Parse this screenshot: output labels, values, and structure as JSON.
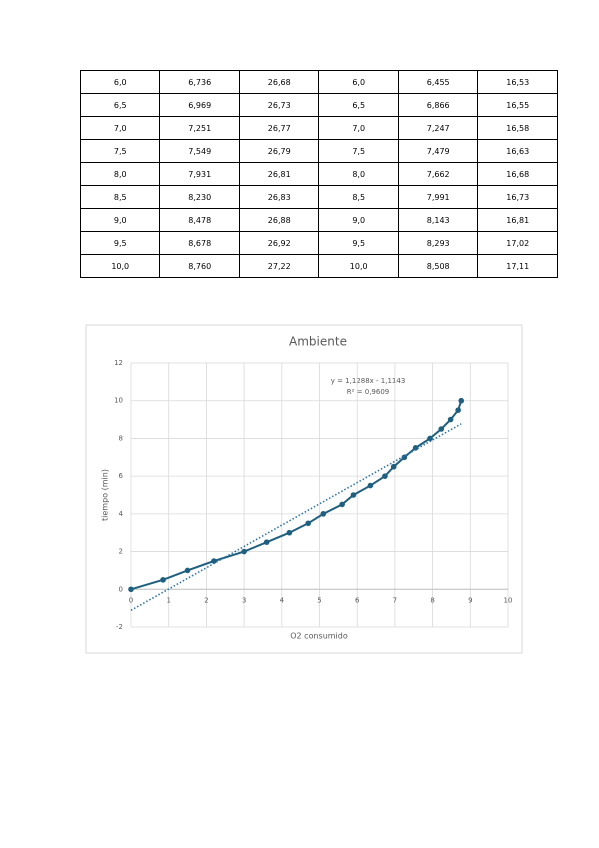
{
  "table": {
    "rows": [
      [
        "6,0",
        "6,736",
        "26,68",
        "6,0",
        "6,455",
        "16,53"
      ],
      [
        "6,5",
        "6,969",
        "26,73",
        "6,5",
        "6,866",
        "16,55"
      ],
      [
        "7,0",
        "7,251",
        "26,77",
        "7,0",
        "7,247",
        "16,58"
      ],
      [
        "7,5",
        "7,549",
        "26,79",
        "7,5",
        "7,479",
        "16,63"
      ],
      [
        "8,0",
        "7,931",
        "26,81",
        "8,0",
        "7,662",
        "16,68"
      ],
      [
        "8,5",
        "8,230",
        "26,83",
        "8,5",
        "7,991",
        "16,73"
      ],
      [
        "9,0",
        "8,478",
        "26,88",
        "9,0",
        "8,143",
        "16,81"
      ],
      [
        "9,5",
        "8,678",
        "26,92",
        "9,5",
        "8,293",
        "17,02"
      ],
      [
        "10,0",
        "8,760",
        "27,22",
        "10,0",
        "8,508",
        "17,11"
      ]
    ]
  },
  "chart_data": {
    "type": "line",
    "title": "Ambiente",
    "x_label": "O2 consumido",
    "y_label": "tiempo (min)",
    "x": [
      0,
      0.85,
      1.5,
      2.2,
      3.0,
      3.6,
      4.2,
      4.7,
      5.1,
      5.6,
      5.9,
      6.35,
      6.736,
      6.969,
      7.251,
      7.549,
      7.931,
      8.23,
      8.478,
      8.678,
      8.76
    ],
    "series": [
      {
        "name": "tiempo",
        "color": "#1f5f7f",
        "values": [
          0,
          0.5,
          1,
          1.5,
          2,
          2.5,
          3,
          3.5,
          4,
          4.5,
          5,
          5.5,
          6,
          6.5,
          7,
          7.5,
          8,
          8.5,
          9,
          9.5,
          10
        ]
      }
    ],
    "trendline": {
      "slope": 1.1288,
      "intercept": -1.1143,
      "equation": "y = 1,1288x - 1,1143",
      "r2": "R² = 0,9609",
      "color": "#2e75a6"
    },
    "xlim": [
      0,
      10
    ],
    "xticks": [
      0,
      1,
      2,
      3,
      4,
      5,
      6,
      7,
      8,
      9,
      10
    ],
    "ylim": [
      -2,
      12
    ],
    "yticks": [
      -2,
      0,
      2,
      4,
      6,
      8,
      10,
      12
    ],
    "grid": true
  }
}
